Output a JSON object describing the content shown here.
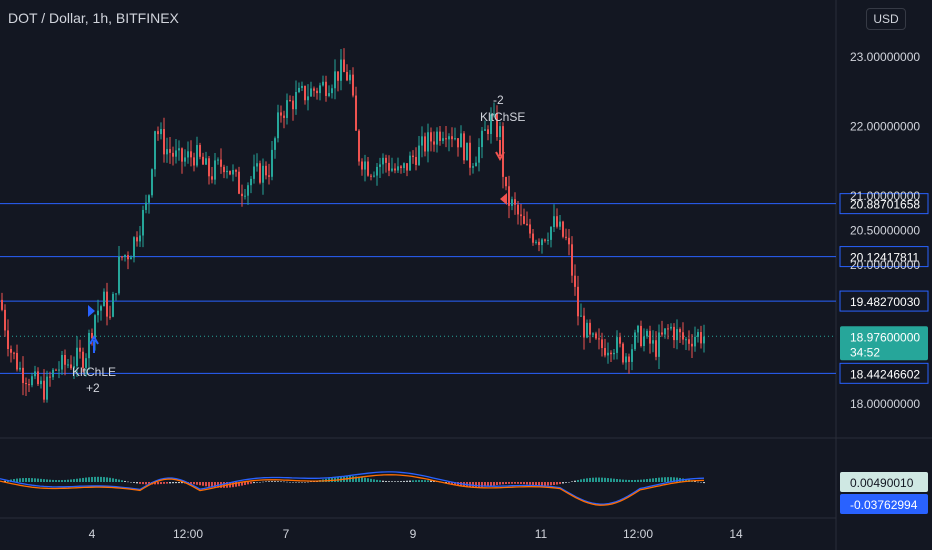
{
  "header": {
    "symbol": "DOT / Dollar, 1h, BITFINEX",
    "currency_button": "USD"
  },
  "colors": {
    "background": "#131722",
    "up": "#26a69a",
    "down": "#ef5350",
    "hline": "#2962ff",
    "grid": "#1e222d",
    "axis_text": "#d1d4dc",
    "macd_line": "#2962ff",
    "signal_line": "#ff6d00",
    "current_price_bg": "#26a69a"
  },
  "chart_data": {
    "type": "candlestick",
    "title": "DOT / Dollar, 1h, BITFINEX",
    "y_ticks": [
      "18.00000000",
      "20.00000000",
      "20.50000000",
      "21.00000000",
      "22.00000000",
      "23.00000000"
    ],
    "x_ticks": [
      "4",
      "12:00",
      "7",
      "9",
      "11",
      "12:00",
      "14"
    ],
    "ylim": [
      17.5,
      23.5
    ],
    "horizontal_levels": [
      {
        "label": "20.88701658",
        "value": 20.887
      },
      {
        "label": "20.12417811",
        "value": 20.124
      },
      {
        "label": "19.48270030",
        "value": 19.483
      },
      {
        "label": "18.44246602",
        "value": 18.442
      }
    ],
    "current_price": {
      "label": "18.97600000",
      "countdown": "34:52",
      "value": 18.976
    },
    "signals": [
      {
        "type": "long",
        "name": "KltChLE",
        "qty": "+2"
      },
      {
        "type": "short",
        "name": "KltChSE",
        "qty": "-2"
      }
    ],
    "price_path": [
      [
        0,
        19.5
      ],
      [
        10,
        18.8
      ],
      [
        20,
        18.5
      ],
      [
        35,
        18.3
      ],
      [
        45,
        18.2
      ],
      [
        55,
        18.5
      ],
      [
        70,
        18.6
      ],
      [
        85,
        18.7
      ],
      [
        95,
        19.3
      ],
      [
        105,
        19.5
      ],
      [
        110,
        19.2
      ],
      [
        120,
        20.1
      ],
      [
        130,
        20.2
      ],
      [
        140,
        20.6
      ],
      [
        148,
        20.9
      ],
      [
        155,
        22.0
      ],
      [
        165,
        21.7
      ],
      [
        180,
        21.5
      ],
      [
        195,
        21.6
      ],
      [
        210,
        21.3
      ],
      [
        225,
        21.5
      ],
      [
        240,
        21.1
      ],
      [
        255,
        21.3
      ],
      [
        270,
        21.4
      ],
      [
        280,
        22.2
      ],
      [
        295,
        22.4
      ],
      [
        310,
        22.5
      ],
      [
        325,
        22.6
      ],
      [
        340,
        22.8
      ],
      [
        350,
        22.7
      ],
      [
        358,
        21.6
      ],
      [
        370,
        21.4
      ],
      [
        385,
        21.5
      ],
      [
        400,
        21.3
      ],
      [
        415,
        21.6
      ],
      [
        430,
        21.8
      ],
      [
        445,
        22.0
      ],
      [
        460,
        21.8
      ],
      [
        470,
        21.5
      ],
      [
        480,
        21.7
      ],
      [
        490,
        22.1
      ],
      [
        500,
        21.9
      ],
      [
        505,
        21.0
      ],
      [
        515,
        20.8
      ],
      [
        525,
        20.5
      ],
      [
        540,
        20.4
      ],
      [
        555,
        20.6
      ],
      [
        568,
        20.3
      ],
      [
        578,
        19.3
      ],
      [
        590,
        18.9
      ],
      [
        600,
        18.8
      ],
      [
        612,
        18.9
      ],
      [
        625,
        18.7
      ],
      [
        640,
        19.0
      ],
      [
        655,
        18.8
      ],
      [
        670,
        19.1
      ],
      [
        685,
        18.9
      ],
      [
        695,
        19.0
      ],
      [
        705,
        18.98
      ]
    ],
    "macd": {
      "values": [
        "0.00490010",
        "-0.03762994"
      ],
      "macd_value": 0.0049,
      "signal_value": -0.0376
    }
  }
}
